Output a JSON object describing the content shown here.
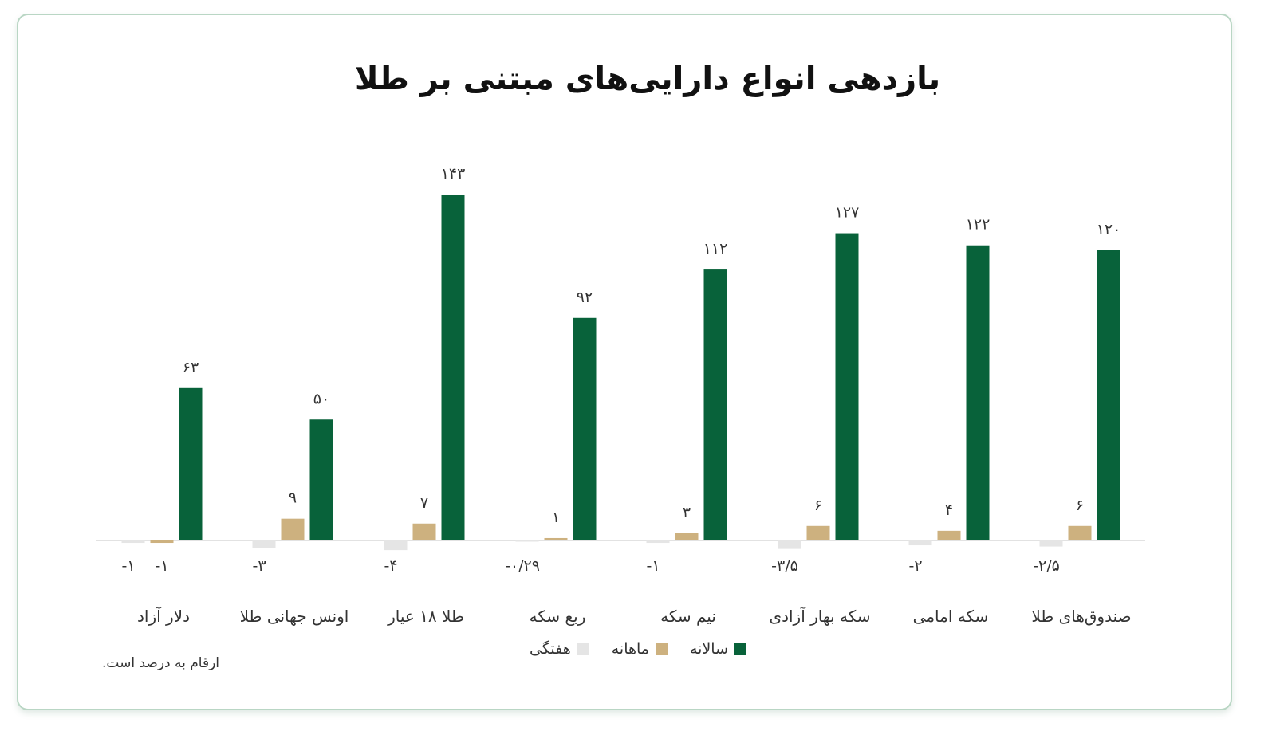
{
  "chart_data": {
    "type": "bar",
    "title": "بازدهی انواع دارایی‌های مبتنی بر طلا",
    "categories": [
      "دلار آزاد",
      "اونس جهانی طلا",
      "طلا ۱۸ عیار",
      "ربع سکه",
      "نیم سکه",
      "سکه بهار آزادی",
      "سکه امامی",
      "صندوق‌های طلا"
    ],
    "series": [
      {
        "name": "هفتگی",
        "color": "#e5e5e5",
        "values": [
          -1,
          -3,
          -4,
          -0.29,
          -1,
          -3.5,
          -2,
          -2.5
        ],
        "labels": [
          "-۱",
          "-۳",
          "-۴",
          "-۰/۲۹",
          "-۱",
          "-۳/۵",
          "-۲",
          "-۲/۵"
        ]
      },
      {
        "name": "ماهانه",
        "color": "#cdb17f",
        "values": [
          -1,
          9,
          7,
          1,
          3,
          6,
          4,
          6
        ],
        "labels": [
          "-۱",
          "۹",
          "۷",
          "۱",
          "۳",
          "۶",
          "۴",
          "۶"
        ]
      },
      {
        "name": "سالانه",
        "color": "#08623a",
        "values": [
          63,
          50,
          143,
          92,
          112,
          127,
          122,
          120
        ],
        "labels": [
          "۶۳",
          "۵۰",
          "۱۴۳",
          "۹۲",
          "۱۱۲",
          "۱۲۷",
          "۱۲۲",
          "۱۲۰"
        ]
      }
    ],
    "legend_position": "bottom",
    "grid": false,
    "note": "ارقام به درصد است."
  }
}
